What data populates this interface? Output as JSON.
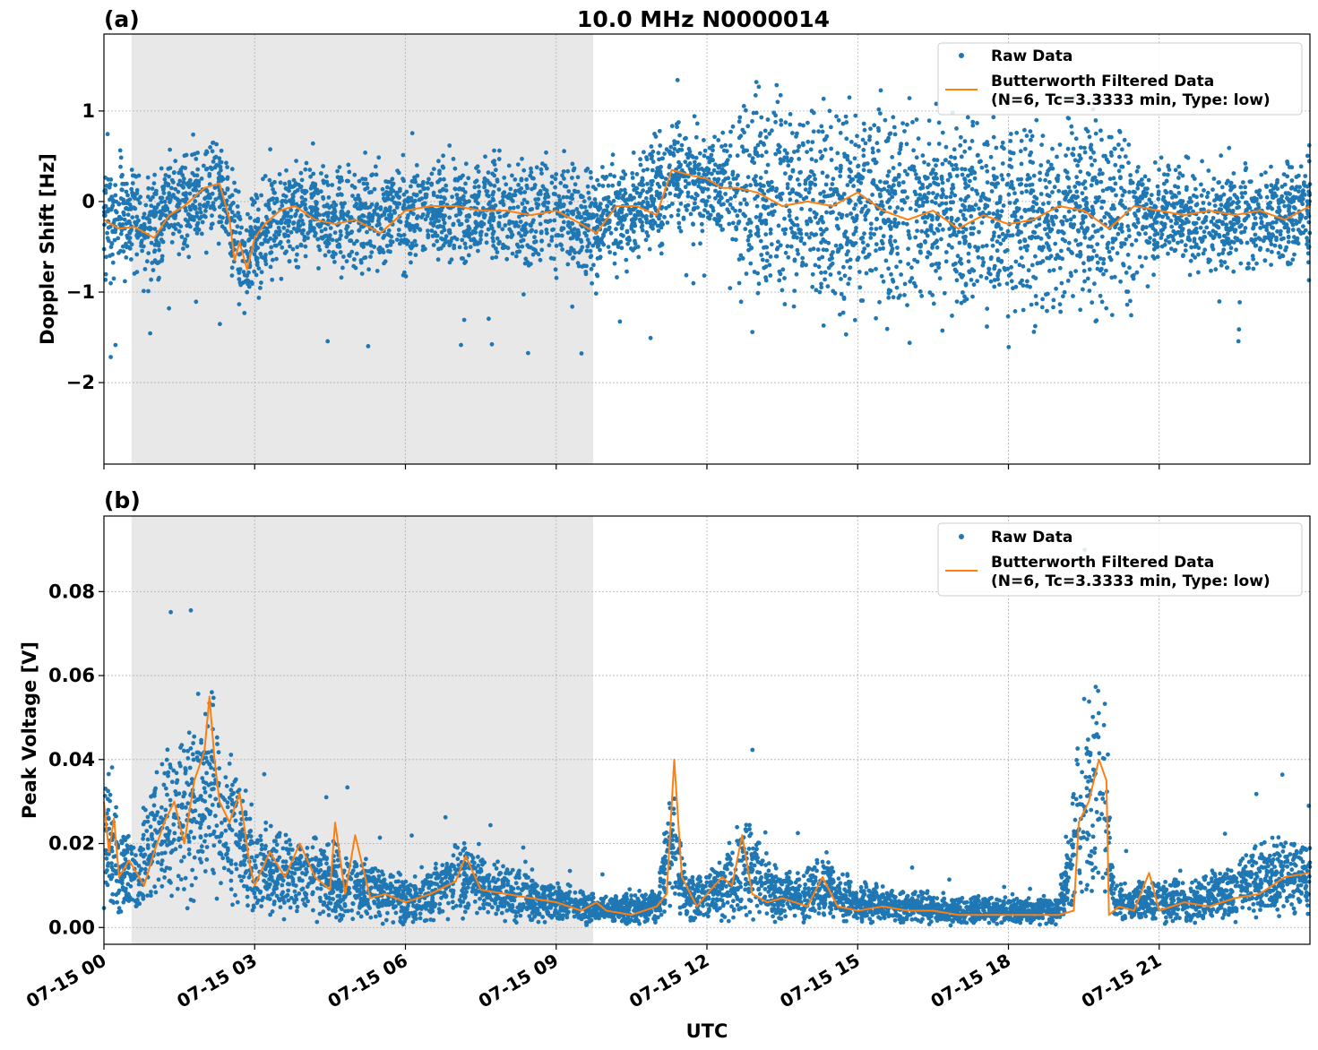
{
  "figure": {
    "title": "10.0 MHz N0000014",
    "xlabel": "UTC",
    "x_tick_labels": [
      "07-15 00",
      "07-15 03",
      "07-15 06",
      "07-15 09",
      "07-15 12",
      "07-15 15",
      "07-15 18",
      "07-15 21"
    ],
    "x_tick_hours": [
      0,
      3,
      6,
      9,
      12,
      15,
      18,
      21
    ],
    "xlim_hours": [
      0,
      24
    ],
    "shaded_interval_hours": [
      0.53,
      9.73
    ],
    "colors": {
      "raw": "#1f77b4",
      "filtered": "#ff7f0e",
      "shade": "#e8e8e8"
    }
  },
  "legend": {
    "raw_label": "Raw Data",
    "filtered_label_line1": "Butterworth Filtered Data",
    "filtered_label_line2": "(N=6, Tc=3.3333 min, Type: low)"
  },
  "chart_data": [
    {
      "panel": "(a)",
      "type": "scatter",
      "title": "10.0 MHz N0000014",
      "xlabel": "",
      "ylabel": "Doppler Shift [Hz]",
      "xlim": [
        0,
        24
      ],
      "ylim": [
        -2.9,
        1.85
      ],
      "yticks": [
        1,
        0,
        -1,
        -2
      ],
      "ytick_labels": [
        "1",
        "0",
        "−1",
        "−2"
      ],
      "grid": true,
      "legend_position": "top-right",
      "series": [
        {
          "name": "Raw Data",
          "kind": "scatter",
          "color": "#1f77b4",
          "band_center": [
            [
              0,
              -0.15
            ],
            [
              0.5,
              -0.2
            ],
            [
              1.0,
              -0.3
            ],
            [
              1.5,
              -0.05
            ],
            [
              2.0,
              0.15
            ],
            [
              2.3,
              0.2
            ],
            [
              2.5,
              -0.2
            ],
            [
              2.8,
              -0.6
            ],
            [
              3.0,
              -0.5
            ],
            [
              3.3,
              -0.3
            ],
            [
              3.8,
              -0.1
            ],
            [
              4.5,
              -0.2
            ],
            [
              5.5,
              -0.2
            ],
            [
              6.2,
              -0.1
            ],
            [
              7.0,
              -0.1
            ],
            [
              8.0,
              -0.1
            ],
            [
              9.0,
              -0.15
            ],
            [
              9.7,
              -0.25
            ],
            [
              10.5,
              -0.1
            ],
            [
              11.0,
              0.1
            ],
            [
              11.5,
              0.35
            ],
            [
              12.0,
              0.2
            ],
            [
              13.0,
              0.1
            ],
            [
              14.0,
              0.0
            ],
            [
              15.0,
              0.0
            ],
            [
              16.0,
              -0.1
            ],
            [
              17.0,
              -0.2
            ],
            [
              18.0,
              -0.2
            ],
            [
              19.0,
              -0.1
            ],
            [
              20.0,
              -0.1
            ],
            [
              21.0,
              -0.1
            ],
            [
              22.0,
              -0.2
            ],
            [
              23.0,
              -0.15
            ],
            [
              24.0,
              -0.1
            ]
          ]
        },
        {
          "name": "Butterworth Filtered Data (N=6, Tc=3.3333 min, Type: low)",
          "kind": "line",
          "color": "#ff7f0e",
          "x": [
            0,
            0.3,
            0.6,
            1.0,
            1.3,
            1.6,
            2.0,
            2.3,
            2.5,
            2.6,
            2.7,
            2.85,
            3.0,
            3.2,
            3.5,
            3.8,
            4.2,
            4.6,
            5.0,
            5.5,
            6.0,
            6.5,
            7.0,
            7.5,
            8.0,
            8.5,
            9.0,
            9.5,
            9.8,
            10.2,
            10.6,
            11.0,
            11.3,
            11.6,
            12.0,
            12.3,
            12.6,
            13.0,
            13.5,
            14.0,
            14.5,
            15.0,
            15.5,
            16.0,
            16.5,
            17.0,
            17.5,
            18.0,
            18.5,
            19.0,
            19.5,
            20.0,
            20.5,
            21.0,
            21.5,
            22.0,
            22.5,
            23.0,
            23.5,
            24.0
          ],
          "y": [
            -0.2,
            -0.3,
            -0.28,
            -0.4,
            -0.15,
            -0.05,
            0.15,
            0.2,
            -0.2,
            -0.65,
            -0.45,
            -0.75,
            -0.4,
            -0.25,
            -0.1,
            -0.05,
            -0.2,
            -0.25,
            -0.2,
            -0.35,
            -0.1,
            -0.05,
            -0.05,
            -0.1,
            -0.1,
            -0.15,
            -0.1,
            -0.25,
            -0.35,
            -0.05,
            -0.05,
            -0.15,
            0.35,
            0.3,
            0.25,
            0.15,
            0.15,
            0.1,
            -0.05,
            0.0,
            -0.05,
            0.1,
            -0.1,
            -0.2,
            -0.1,
            -0.3,
            -0.15,
            -0.25,
            -0.2,
            -0.05,
            -0.1,
            -0.3,
            -0.05,
            -0.1,
            -0.15,
            -0.1,
            -0.15,
            -0.1,
            -0.2,
            -0.05
          ]
        }
      ]
    },
    {
      "panel": "(b)",
      "type": "scatter",
      "title": "",
      "xlabel": "UTC",
      "ylabel": "Peak Voltage [V]",
      "xlim": [
        0,
        24
      ],
      "ylim": [
        -0.004,
        0.098
      ],
      "yticks": [
        0.0,
        0.02,
        0.04,
        0.06,
        0.08
      ],
      "ytick_labels": [
        "0.00",
        "0.02",
        "0.04",
        "0.06",
        "0.08"
      ],
      "grid": true,
      "legend_position": "top-right",
      "series": [
        {
          "name": "Raw Data",
          "kind": "scatter",
          "color": "#1f77b4",
          "band_center": [
            [
              0,
              0.025
            ],
            [
              0.3,
              0.013
            ],
            [
              0.6,
              0.012
            ],
            [
              1.0,
              0.02
            ],
            [
              1.5,
              0.026
            ],
            [
              2.0,
              0.03
            ],
            [
              2.2,
              0.033
            ],
            [
              2.5,
              0.025
            ],
            [
              3.0,
              0.014
            ],
            [
              3.5,
              0.013
            ],
            [
              4.0,
              0.012
            ],
            [
              4.5,
              0.012
            ],
            [
              5.0,
              0.01
            ],
            [
              5.5,
              0.008
            ],
            [
              6.0,
              0.007
            ],
            [
              6.5,
              0.008
            ],
            [
              7.0,
              0.012
            ],
            [
              7.5,
              0.009
            ],
            [
              8.0,
              0.008
            ],
            [
              8.5,
              0.007
            ],
            [
              9.0,
              0.006
            ],
            [
              9.5,
              0.005
            ],
            [
              10.0,
              0.004
            ],
            [
              10.5,
              0.005
            ],
            [
              11.0,
              0.005
            ],
            [
              11.3,
              0.02
            ],
            [
              11.6,
              0.006
            ],
            [
              12.0,
              0.008
            ],
            [
              12.5,
              0.01
            ],
            [
              12.8,
              0.015
            ],
            [
              13.2,
              0.009
            ],
            [
              13.8,
              0.007
            ],
            [
              14.3,
              0.009
            ],
            [
              15.0,
              0.006
            ],
            [
              16.0,
              0.005
            ],
            [
              17.0,
              0.004
            ],
            [
              18.0,
              0.004
            ],
            [
              19.0,
              0.004
            ],
            [
              19.5,
              0.03
            ],
            [
              19.9,
              0.035
            ],
            [
              20.1,
              0.006
            ],
            [
              21.0,
              0.006
            ],
            [
              22.0,
              0.007
            ],
            [
              23.0,
              0.011
            ],
            [
              24.0,
              0.012
            ]
          ]
        },
        {
          "name": "Butterworth Filtered Data (N=6, Tc=3.3333 min, Type: low)",
          "kind": "line",
          "color": "#ff7f0e",
          "x": [
            0,
            0.1,
            0.2,
            0.3,
            0.5,
            0.8,
            1.0,
            1.2,
            1.4,
            1.6,
            1.8,
            2.0,
            2.1,
            2.2,
            2.3,
            2.5,
            2.7,
            2.9,
            3.0,
            3.3,
            3.6,
            3.9,
            4.2,
            4.5,
            4.6,
            4.8,
            5.0,
            5.3,
            5.6,
            6.0,
            6.5,
            7.0,
            7.2,
            7.5,
            8.0,
            8.5,
            9.0,
            9.5,
            9.8,
            10.0,
            10.5,
            11.0,
            11.2,
            11.35,
            11.5,
            11.8,
            12.0,
            12.3,
            12.5,
            12.7,
            12.9,
            13.2,
            13.5,
            14.0,
            14.3,
            14.6,
            15.0,
            15.5,
            16.0,
            16.5,
            17.0,
            17.5,
            18.0,
            18.5,
            19.0,
            19.3,
            19.4,
            19.6,
            19.8,
            19.95,
            20.0,
            20.2,
            20.5,
            20.8,
            21.0,
            21.5,
            22.0,
            22.5,
            23.0,
            23.5,
            24.0
          ],
          "y": [
            0.03,
            0.018,
            0.026,
            0.012,
            0.016,
            0.01,
            0.018,
            0.025,
            0.03,
            0.02,
            0.035,
            0.042,
            0.055,
            0.04,
            0.03,
            0.025,
            0.032,
            0.015,
            0.01,
            0.018,
            0.012,
            0.02,
            0.012,
            0.009,
            0.025,
            0.008,
            0.022,
            0.007,
            0.008,
            0.006,
            0.008,
            0.011,
            0.017,
            0.009,
            0.008,
            0.007,
            0.006,
            0.004,
            0.006,
            0.004,
            0.003,
            0.005,
            0.008,
            0.04,
            0.012,
            0.005,
            0.008,
            0.012,
            0.01,
            0.022,
            0.008,
            0.006,
            0.007,
            0.005,
            0.012,
            0.005,
            0.004,
            0.005,
            0.004,
            0.004,
            0.003,
            0.003,
            0.003,
            0.003,
            0.003,
            0.004,
            0.025,
            0.03,
            0.04,
            0.035,
            0.003,
            0.005,
            0.004,
            0.013,
            0.004,
            0.006,
            0.005,
            0.007,
            0.008,
            0.012,
            0.013
          ]
        }
      ]
    }
  ]
}
